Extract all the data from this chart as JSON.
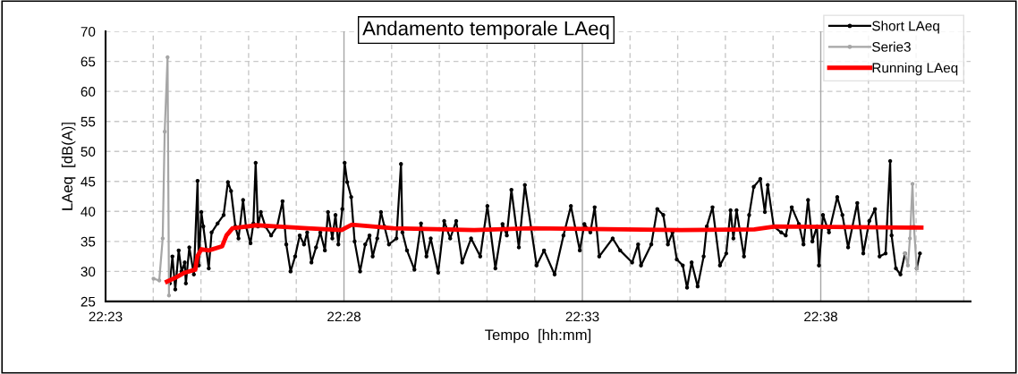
{
  "chart_data": {
    "type": "line",
    "title": "Andamento temporale LAeq",
    "xlabel": "Tempo  [hh:mm]",
    "ylabel": "LAeq  [dB(A)]",
    "xlim": [
      22.38333,
      22.6857
    ],
    "ylim": [
      25,
      70
    ],
    "xticks": [
      {
        "value": 22.38333,
        "label": "22:23"
      },
      {
        "value": 22.4,
        "label": null
      },
      {
        "value": 22.41667,
        "label": null
      },
      {
        "value": 22.43333,
        "label": null
      },
      {
        "value": 22.45,
        "label": null
      },
      {
        "value": 22.46667,
        "label": "22:28"
      },
      {
        "value": 22.48333,
        "label": null
      },
      {
        "value": 22.5,
        "label": null
      },
      {
        "value": 22.51667,
        "label": null
      },
      {
        "value": 22.53333,
        "label": null
      },
      {
        "value": 22.55,
        "label": "22:33"
      },
      {
        "value": 22.56667,
        "label": null
      },
      {
        "value": 22.58333,
        "label": null
      },
      {
        "value": 22.6,
        "label": null
      },
      {
        "value": 22.61667,
        "label": null
      },
      {
        "value": 22.63333,
        "label": "22:38"
      },
      {
        "value": 22.65,
        "label": null
      },
      {
        "value": 22.66667,
        "label": null
      },
      {
        "value": 22.68333,
        "label": null
      }
    ],
    "yticks": [
      25,
      30,
      35,
      40,
      45,
      50,
      55,
      60,
      65,
      70
    ],
    "grid": true,
    "legend": "top right",
    "line_style": "solid",
    "series": [
      {
        "name": "Short LAeq",
        "color": "#000000",
        "marker": "circle",
        "x": [
          22.4058,
          22.4067,
          22.4077,
          22.4089,
          22.4099,
          22.411,
          22.4114,
          22.4126,
          22.4142,
          22.4155,
          22.4159,
          22.4168,
          22.4175,
          22.4194,
          22.4204,
          22.4225,
          22.4246,
          22.4261,
          22.4272,
          22.4287,
          22.4298,
          22.4314,
          22.4324,
          22.434,
          22.435,
          22.4358,
          22.4366,
          22.4376,
          22.4392,
          22.4412,
          22.4433,
          22.4452,
          22.4465,
          22.448,
          22.4496,
          22.4512,
          22.4527,
          22.4538,
          22.4553,
          22.4569,
          22.4584,
          22.46,
          22.4611,
          22.4626,
          22.4637,
          22.4647,
          22.4661,
          22.4669,
          22.4678,
          22.4692,
          22.4704,
          22.4723,
          22.4741,
          22.4756,
          22.4767,
          22.4783,
          22.4796,
          22.4808,
          22.4824,
          22.485,
          22.4866,
          22.4871,
          22.4887,
          22.4913,
          22.4936,
          22.4955,
          22.497,
          22.4996,
          22.5017,
          22.5038,
          22.5059,
          22.508,
          22.5111,
          22.5143,
          22.5168,
          22.5196,
          22.5221,
          22.5236,
          22.5252,
          22.5278,
          22.5299,
          22.534,
          22.5366,
          22.5403,
          22.5434,
          22.546,
          22.5491,
          22.5507,
          22.5528,
          22.5543,
          22.5559,
          22.5606,
          22.5632,
          22.5674,
          22.5695,
          22.5705,
          22.5741,
          22.5762,
          22.5783,
          22.5799,
          22.5815,
          22.583,
          22.5851,
          22.5866,
          22.5882,
          22.5903,
          22.5924,
          22.5935,
          22.5955,
          22.5981,
          22.6003,
          22.6018,
          22.6028,
          22.6039,
          22.6065,
          22.6083,
          22.6099,
          22.6122,
          22.6138,
          22.6148,
          22.6169,
          22.6195,
          22.6211,
          22.6232,
          22.6257,
          22.6273,
          22.6289,
          22.6304,
          22.632,
          22.6327,
          22.6341,
          22.6362,
          22.6391,
          22.6409,
          22.6429,
          22.6461,
          22.6482,
          22.6503,
          22.6523,
          22.6539,
          22.656,
          22.6576,
          22.6581,
          22.6596,
          22.6612,
          22.6628,
          22.665,
          22.6669,
          22.668
        ],
        "values": [
          28.0,
          32.5,
          27,
          33.5,
          30,
          31.5,
          28,
          34,
          29.5,
          45.1,
          31,
          39.9,
          37.5,
          30.5,
          36.5,
          38,
          39.4,
          44.9,
          43.4,
          37.5,
          35.5,
          41.9,
          37.5,
          34.7,
          38,
          48.1,
          37.5,
          39.9,
          37.5,
          36,
          37.5,
          41.7,
          34.5,
          30,
          32.5,
          36,
          34.5,
          36.5,
          31.5,
          34,
          36.5,
          33.5,
          39.9,
          35.5,
          39.4,
          34.5,
          40.4,
          48.1,
          44.9,
          42.4,
          35,
          30,
          34.5,
          36,
          32.5,
          35.5,
          39.9,
          37.5,
          34.5,
          35.5,
          47.9,
          36.5,
          33.5,
          30.3,
          38,
          32.5,
          35.5,
          29.8,
          38.4,
          35.5,
          38.4,
          31.5,
          35.5,
          32.5,
          40.9,
          30.5,
          37.9,
          36,
          43.6,
          34,
          44.4,
          31,
          33.5,
          29.5,
          36,
          40.9,
          33.5,
          37.9,
          36.5,
          40.7,
          32.5,
          35.5,
          33.5,
          31.5,
          34.5,
          31,
          34.5,
          40.4,
          39.4,
          34.5,
          36.5,
          32,
          31,
          27.3,
          31.5,
          27.5,
          32.5,
          37.5,
          40.7,
          31,
          33,
          40.2,
          35.5,
          40.2,
          32.5,
          39.4,
          44.1,
          45.4,
          39.9,
          44.4,
          37.5,
          36.5,
          36,
          40.7,
          37.9,
          34.5,
          41.9,
          35,
          37.5,
          31,
          39.4,
          36.5,
          42.4,
          39.4,
          34,
          41.4,
          33,
          38.4,
          40.4,
          32.5,
          33,
          48.4,
          36,
          30.5,
          29.5,
          33,
          null,
          30.5,
          33
        ]
      },
      {
        "name": "Serie3",
        "color": "#a6a6a6",
        "marker": "circle",
        "x": [
          22.4001,
          22.4021,
          22.4033,
          22.404,
          22.405,
          22.4055,
          22.5,
          22.6628,
          22.6638,
          22.6645,
          22.6654,
          22.6659,
          22.6669
        ],
        "values": [
          28.8,
          28.5,
          35.5,
          53.3,
          65.7,
          26,
          null,
          33,
          31,
          35.5,
          44.6,
          37.5,
          30.5
        ]
      },
      {
        "name": "Running LAeq",
        "color": "#ff0000",
        "marker": "none",
        "x": [
          22.4048,
          22.4079,
          22.411,
          22.4147,
          22.4154,
          22.4168,
          22.4194,
          22.4241,
          22.4256,
          22.4277,
          22.4361,
          22.4433,
          22.4538,
          22.4658,
          22.4694,
          22.484,
          22.5122,
          22.532,
          22.5841,
          22.6101,
          22.6174,
          22.6685
        ],
        "values": [
          28.3,
          29,
          29.8,
          30.3,
          32.5,
          33.7,
          33.5,
          34.2,
          36,
          37.2,
          37.7,
          37.5,
          37.2,
          36.9,
          37.8,
          37.2,
          36.9,
          37.2,
          36.9,
          37,
          37.5,
          37.3
        ]
      }
    ]
  }
}
